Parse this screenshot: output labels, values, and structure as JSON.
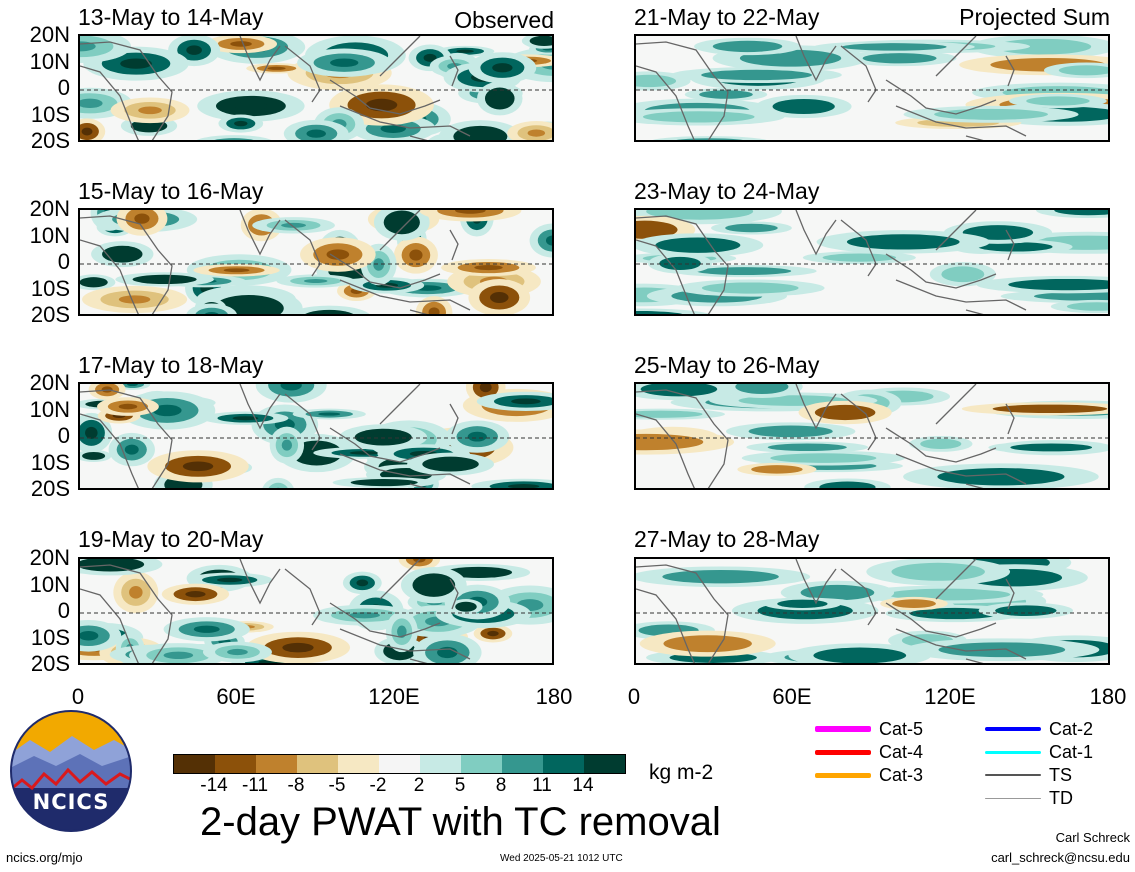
{
  "left_labels": {
    "observed": "Observed"
  },
  "right_labels": {
    "projected": "Projected Sum"
  },
  "panels_left": [
    {
      "title": "13-May to 14-May"
    },
    {
      "title": "15-May to 16-May"
    },
    {
      "title": "17-May to 18-May"
    },
    {
      "title": "19-May to 20-May"
    }
  ],
  "panels_right": [
    {
      "title": "21-May to 22-May"
    },
    {
      "title": "23-May to 24-May"
    },
    {
      "title": "25-May to 26-May"
    },
    {
      "title": "27-May to 28-May"
    }
  ],
  "lat_ticks": [
    "20N",
    "10N",
    "0",
    "10S",
    "20S"
  ],
  "lon_ticks": [
    "0",
    "60E",
    "120E",
    "180"
  ],
  "colorbar": {
    "colors": [
      "#543005",
      "#8c510a",
      "#bf812d",
      "#dfc27d",
      "#f6e8c3",
      "#f5f5f5",
      "#c7eae5",
      "#80cdc1",
      "#35978f",
      "#01665e",
      "#003c30"
    ],
    "labels": [
      "-14",
      "-11",
      "-8",
      "-5",
      "-2",
      "2",
      "5",
      "8",
      "11",
      "14"
    ],
    "unit": "kg m-2"
  },
  "title": "2-day PWAT with TC removal",
  "logo_text": "NCICS",
  "url_text": "ncics.org/mjo",
  "timestamp": "Wed 2025-05-21 1012 UTC",
  "author": "Carl Schreck",
  "email": "carl_schreck@ncsu.edu",
  "tc_legend": [
    {
      "label": "Cat-5",
      "color": "#ff00ff"
    },
    {
      "label": "Cat-4",
      "color": "#ff0000"
    },
    {
      "label": "Cat-3",
      "color": "#ffa500"
    },
    {
      "label": "Cat-2",
      "color": "#0000ff"
    },
    {
      "label": "Cat-1",
      "color": "#00ffff"
    },
    {
      "label": "TS",
      "color": "#555555"
    },
    {
      "label": "TD",
      "color": "#999999"
    }
  ]
}
